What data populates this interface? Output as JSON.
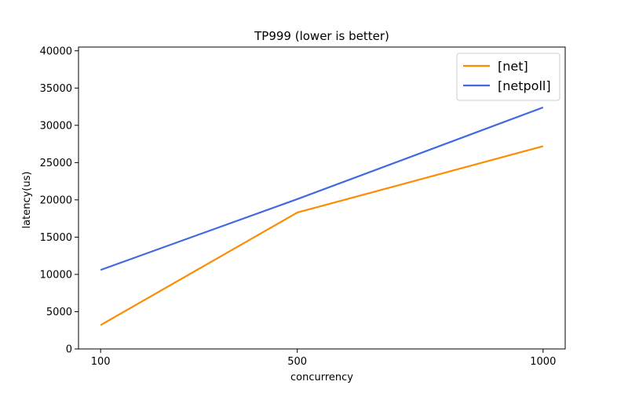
{
  "chart_data": {
    "type": "line",
    "title": "TP999 (lower is better)",
    "xlabel": "concurrency",
    "ylabel": "latency(us)",
    "x": [
      100,
      500,
      1000
    ],
    "x_tick_labels": [
      "100",
      "500",
      "1000"
    ],
    "ylim": [
      0,
      40000
    ],
    "y_ticks": [
      0,
      5000,
      10000,
      15000,
      20000,
      25000,
      30000,
      35000,
      40000
    ],
    "y_tick_labels": [
      "0",
      "5000",
      "10000",
      "15000",
      "20000",
      "25000",
      "30000",
      "35000",
      "40000"
    ],
    "legend_position": "top-right",
    "grid": false,
    "series": [
      {
        "name": "[net]",
        "color": "#ff8c00",
        "values": [
          3200,
          18300,
          27200
        ]
      },
      {
        "name": "[netpoll]",
        "color": "#4169e1",
        "values": [
          10600,
          20100,
          32400
        ]
      }
    ]
  }
}
